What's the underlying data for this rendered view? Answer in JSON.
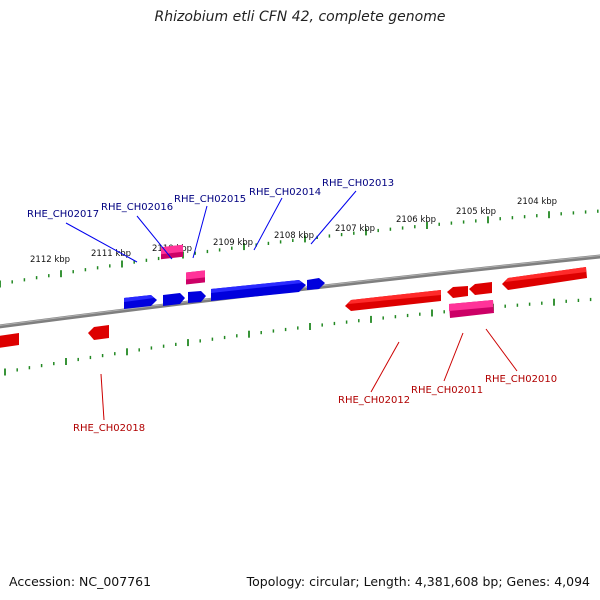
{
  "title": "Rhizobium etli CFN 42, complete genome",
  "footer": {
    "accession": "Accession: NC_007761",
    "summary": "Topology: circular; Length: 4,381,608 bp; Genes: 4,094"
  },
  "colors": {
    "forward_gene": "#0000ee",
    "reverse_gene": "#ee0000",
    "forward_rna": "#ee1188",
    "reverse_rna": "#ee1188",
    "backbone": "#808080",
    "scale_ticks": "#228822",
    "forward_label": "#000080",
    "reverse_label": "#b00000"
  },
  "scale_labels": [
    "2112 kbp",
    "2111 kbp",
    "2110 kbp",
    "2109 kbp",
    "2108 kbp",
    "2107 kbp",
    "2106 kbp",
    "2105 kbp",
    "2104 kbp"
  ],
  "forward_labels": [
    "RHE_CH02017",
    "RHE_CH02016",
    "RHE_CH02015",
    "RHE_CH02014",
    "RHE_CH02013"
  ],
  "reverse_labels": [
    "RHE_CH02018",
    "RHE_CH02012",
    "RHE_CH02011",
    "RHE_CH02010"
  ]
}
